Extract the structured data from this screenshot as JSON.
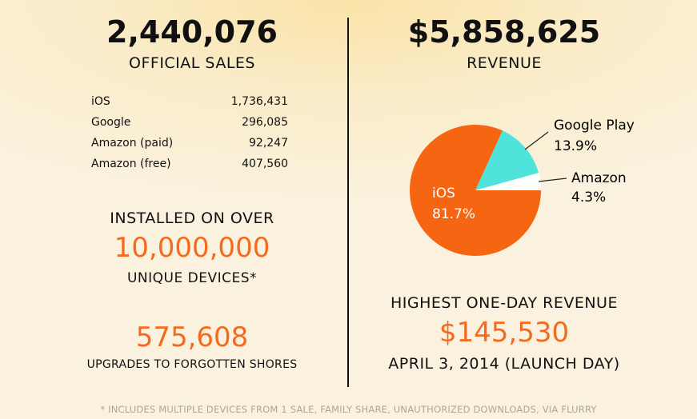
{
  "left": {
    "sales_total": "2,440,076",
    "sales_label": "OFFICIAL SALES",
    "breakdown": [
      {
        "platform": "iOS",
        "value": "1,736,431"
      },
      {
        "platform": "Google",
        "value": "296,085"
      },
      {
        "platform": "Amazon (paid)",
        "value": "92,247"
      },
      {
        "platform": "Amazon (free)",
        "value": "407,560"
      }
    ],
    "installed_label": "INSTALLED ON OVER",
    "installed_value": "10,000,000",
    "devices_label": "UNIQUE DEVICES*",
    "upgrades_value": "575,608",
    "upgrades_label": "UPGRADES TO FORGOTTEN SHORES"
  },
  "right": {
    "revenue_total": "$5,858,625",
    "revenue_label": "REVENUE",
    "highest_label": "HIGHEST ONE-DAY REVENUE",
    "highest_value": "$145,530",
    "highest_date": "APRIL 3, 2014 (LAUNCH DAY)"
  },
  "footnote": "* INCLUDES MULTIPLE DEVICES FROM 1 SALE, FAMILY SHARE, UNAUTHORIZED DOWNLOADS, VIA FLURRY",
  "chart_data": {
    "type": "pie",
    "title": "REVENUE",
    "slices": [
      {
        "label": "Amazon",
        "value": 4.3,
        "pct_label": "4.3%",
        "color": "#ffffff"
      },
      {
        "label": "Google Play",
        "value": 13.9,
        "pct_label": "13.9%",
        "color": "#4fe3dc"
      },
      {
        "label": "iOS",
        "value": 81.7,
        "pct_label": "81.7%",
        "color": "#f66511"
      }
    ]
  }
}
